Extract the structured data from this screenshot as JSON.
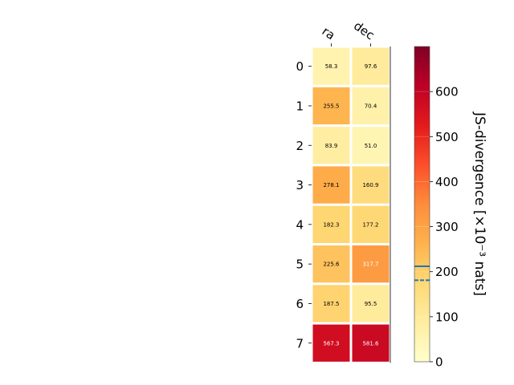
{
  "chart_data": {
    "type": "heatmap",
    "columns": [
      "ra",
      "dec"
    ],
    "rows": [
      "0",
      "1",
      "2",
      "3",
      "4",
      "5",
      "6",
      "7"
    ],
    "values": [
      [
        58.3,
        97.6
      ],
      [
        255.5,
        70.4
      ],
      [
        83.9,
        51.0
      ],
      [
        278.1,
        160.9
      ],
      [
        182.3,
        177.2
      ],
      [
        225.6,
        317.7
      ],
      [
        187.5,
        95.5
      ],
      [
        567.3,
        581.6
      ]
    ],
    "value_labels": [
      [
        "58.3",
        "97.6"
      ],
      [
        "255.5",
        "70.4"
      ],
      [
        "83.9",
        "51.0"
      ],
      [
        "278.1",
        "160.9"
      ],
      [
        "182.3",
        "177.2"
      ],
      [
        "225.6",
        "317.7"
      ],
      [
        "187.5",
        "95.5"
      ],
      [
        "567.3",
        "581.6"
      ]
    ],
    "colorbar": {
      "label": "JS-divergence [×10⁻³ nats]",
      "range": [
        0,
        700
      ],
      "ticks": [
        0,
        100,
        200,
        300,
        400,
        500,
        600
      ],
      "tick_labels": [
        "0",
        "100",
        "200",
        "300",
        "400",
        "500",
        "600"
      ],
      "colormap": "YlOrRd",
      "markers": [
        {
          "value": 212,
          "style": "solid",
          "color": "#1f77b4"
        },
        {
          "value": 181,
          "style": "dashed",
          "color": "#1f77b4"
        }
      ]
    },
    "grid": false
  }
}
